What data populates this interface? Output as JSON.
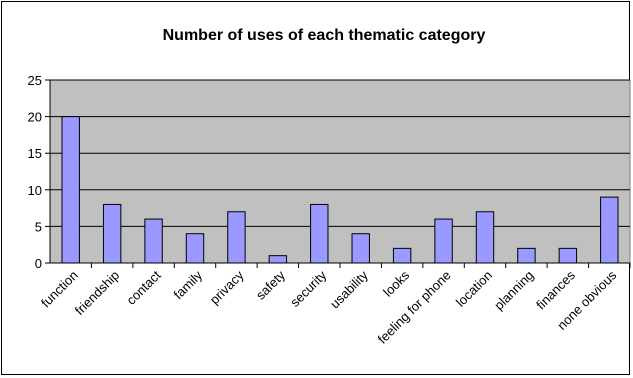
{
  "chart_data": {
    "type": "bar",
    "title": "Number of uses of each thematic category",
    "categories": [
      "function",
      "friendship",
      "contact",
      "family",
      "privacy",
      "safety",
      "security",
      "usability",
      "looks",
      "feeling for phone",
      "location",
      "planning",
      "finances",
      "none obvious"
    ],
    "values": [
      20,
      8,
      6,
      4,
      7,
      1,
      8,
      4,
      2,
      6,
      7,
      2,
      2,
      9
    ],
    "ylim": [
      0,
      25
    ],
    "yticks": [
      0,
      5,
      10,
      15,
      20,
      25
    ],
    "grid": true,
    "legend": "none",
    "colors": {
      "plot_bg": "#c0c0c0",
      "bar_fill": "#9999ff",
      "bar_stroke": "#000000",
      "grid": "#000000"
    }
  }
}
